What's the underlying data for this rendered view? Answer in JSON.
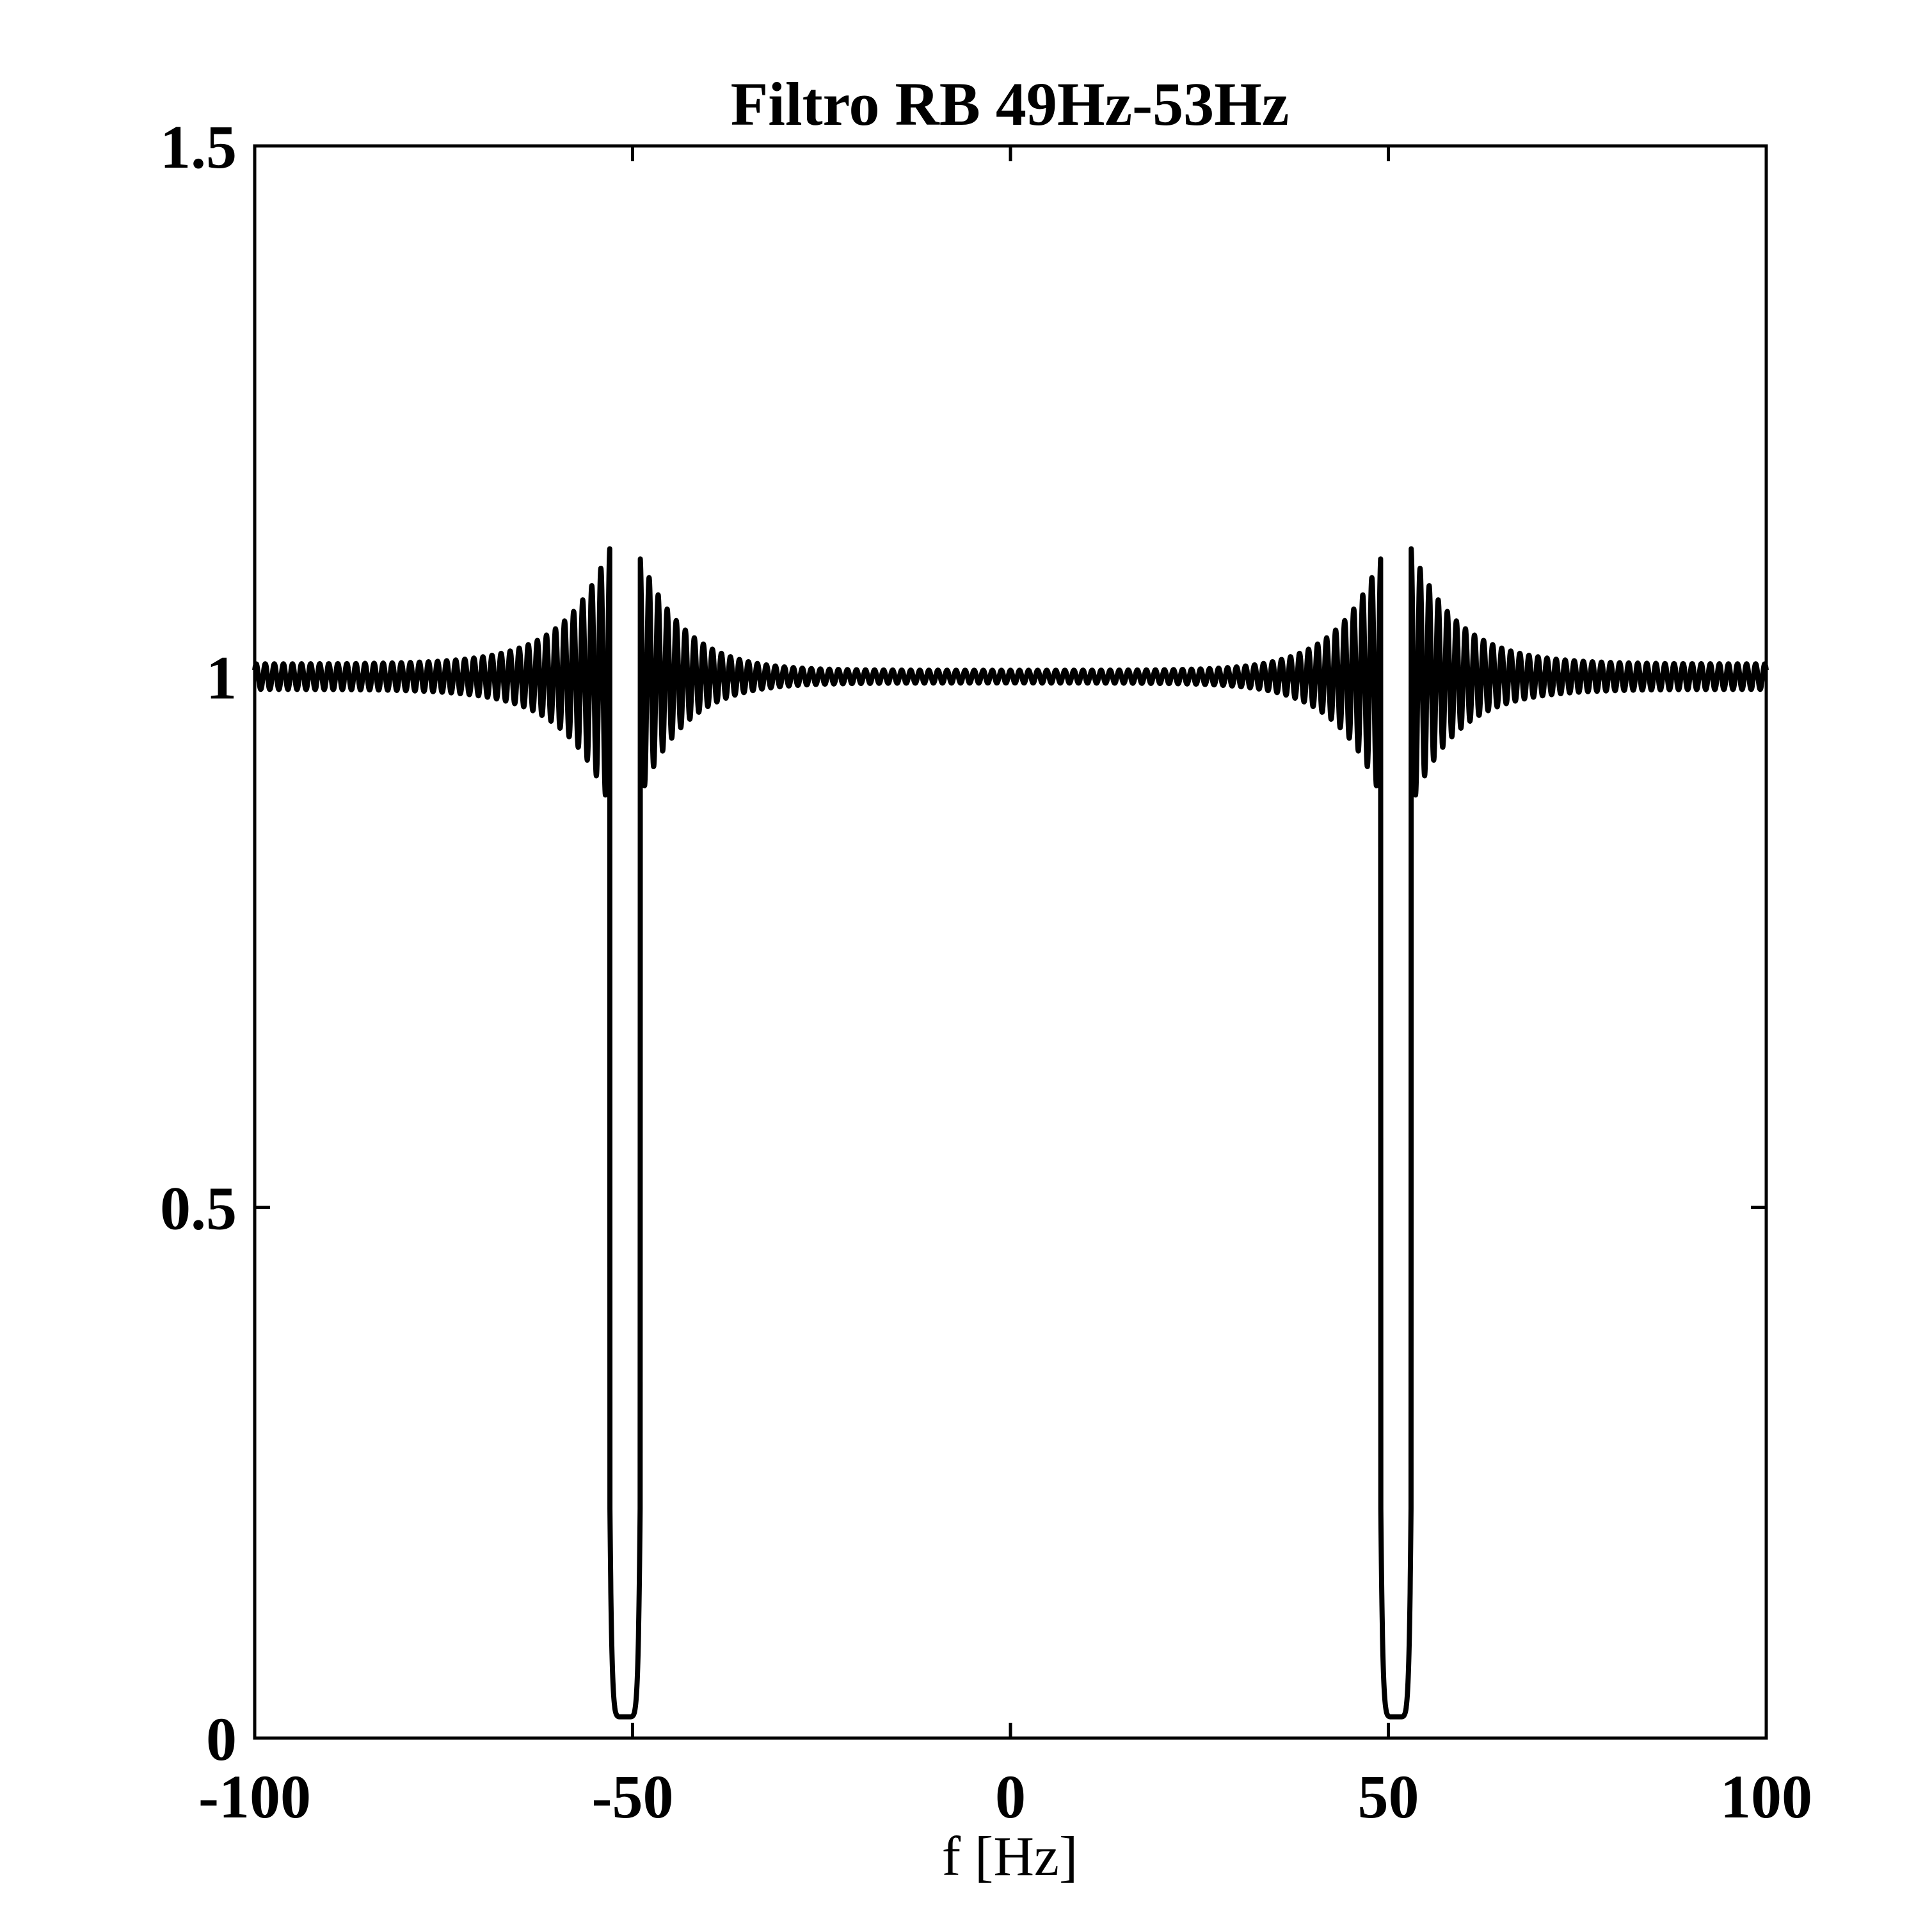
{
  "chart_data": {
    "type": "line",
    "title": "Filtro RB 49Hz-53Hz",
    "xlabel": "f [Hz]",
    "ylabel": "",
    "xlim": [
      -100,
      100
    ],
    "ylim": [
      0,
      1.5
    ],
    "xticks": [
      -100,
      -50,
      0,
      50,
      100
    ],
    "xtick_labels": [
      "-100",
      "-50",
      "0",
      "50",
      "100"
    ],
    "yticks": [
      0,
      0.5,
      1,
      1.5
    ],
    "ytick_labels": [
      "0",
      "0.5",
      "1",
      "1.5"
    ],
    "grid": false,
    "line_color": "#000000",
    "series": [
      {
        "passband_level": 1.0,
        "stopbands": [
          {
            "f_low": -53,
            "f_high": -49,
            "level": 0.02
          },
          {
            "f_low": 49,
            "f_high": 53,
            "level": 0.02
          }
        ],
        "peak_overshoot": 1.11,
        "ripple_undershoot": 0.93,
        "ripple_period_hz": 1.2
      }
    ]
  }
}
